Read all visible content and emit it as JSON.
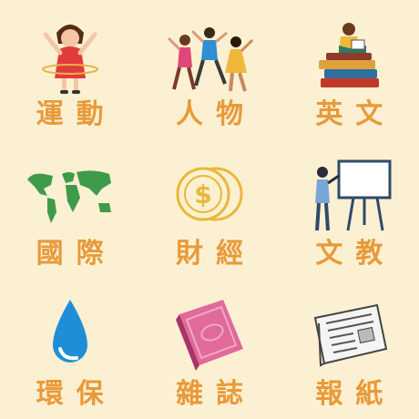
{
  "colors": {
    "background": "#fcf0d2",
    "label": "#e89a3a"
  },
  "categories": [
    {
      "label": "運動",
      "icon": "girl-hula-hoop-icon"
    },
    {
      "label": "人物",
      "icon": "dancing-people-icon"
    },
    {
      "label": "英文",
      "icon": "reader-on-books-icon"
    },
    {
      "label": "國際",
      "icon": "world-map-icon"
    },
    {
      "label": "財經",
      "icon": "coins-icon"
    },
    {
      "label": "文教",
      "icon": "teacher-whiteboard-icon"
    },
    {
      "label": "環保",
      "icon": "water-drop-icon"
    },
    {
      "label": "雜誌",
      "icon": "magazine-icon"
    },
    {
      "label": "報紙",
      "icon": "newspaper-icon"
    }
  ]
}
